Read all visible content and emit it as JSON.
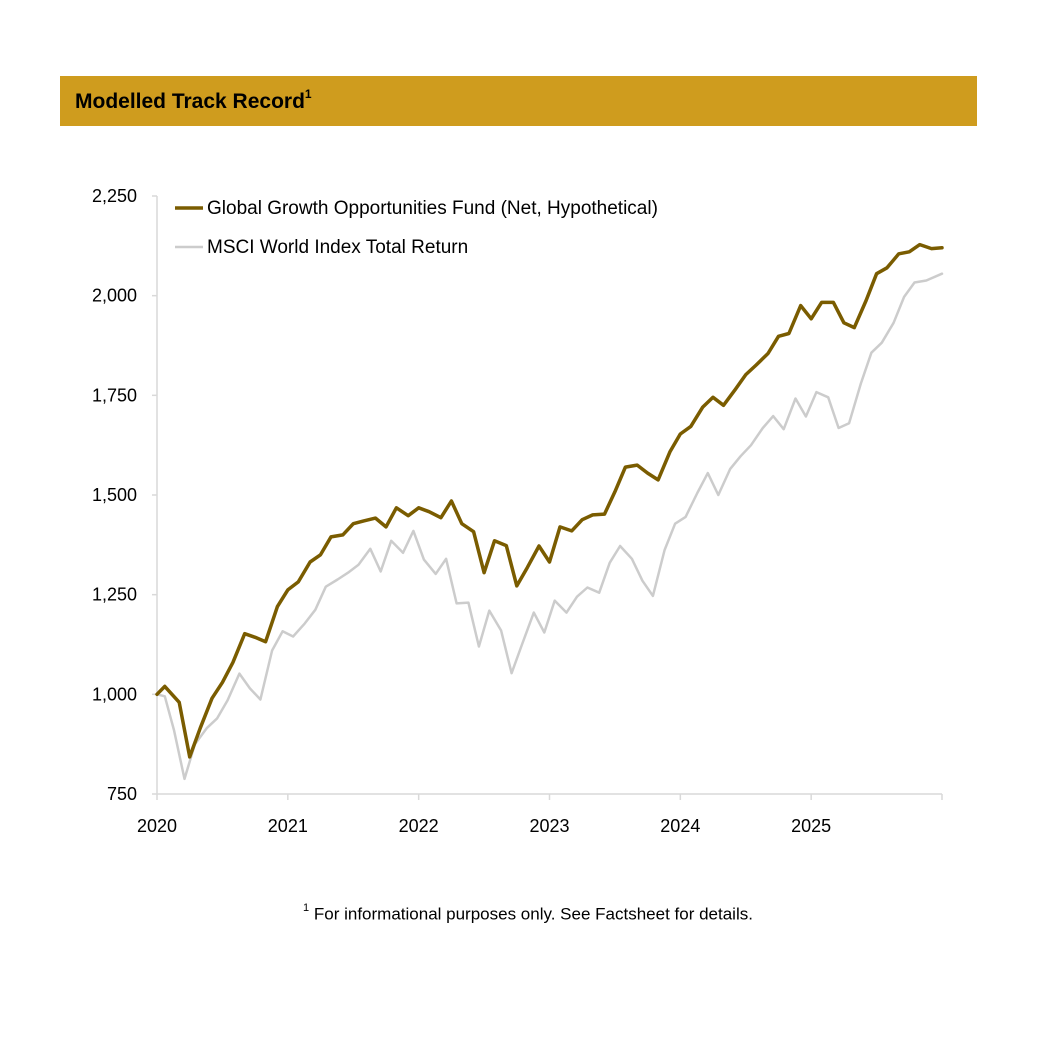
{
  "header": {
    "title": "Modelled Track Record",
    "title_sup": "1",
    "bar_color": "#cf9c1e"
  },
  "footnote": {
    "marker": "1",
    "text": " For informational purposes only. See Factsheet for details."
  },
  "chart_data": {
    "type": "line",
    "title": "",
    "xlabel": "",
    "ylabel": "",
    "ylim": [
      750,
      2250
    ],
    "xlim": [
      2020,
      2026
    ],
    "x_ticks": [
      2020,
      2021,
      2022,
      2023,
      2024,
      2025
    ],
    "x_tick_labels": [
      "2020",
      "2021",
      "2022",
      "2023",
      "2024",
      "2025"
    ],
    "y_ticks": [
      750,
      1000,
      1250,
      1500,
      1750,
      2000,
      2250
    ],
    "y_tick_labels": [
      "750",
      "1,000",
      "1,250",
      "1,500",
      "1,750",
      "2,000",
      "2,250"
    ],
    "grid": false,
    "legend_position": "top-left",
    "series": [
      {
        "name": "Global Growth Opportunities Fund (Net, Hypothetical)",
        "color": "#7a5c00",
        "points": [
          [
            2020.0,
            1000
          ],
          [
            2020.06,
            1020
          ],
          [
            2020.17,
            980
          ],
          [
            2020.25,
            843
          ],
          [
            2020.33,
            915
          ],
          [
            2020.42,
            990
          ],
          [
            2020.5,
            1030
          ],
          [
            2020.58,
            1080
          ],
          [
            2020.67,
            1152
          ],
          [
            2020.75,
            1143
          ],
          [
            2020.83,
            1132
          ],
          [
            2020.92,
            1220
          ],
          [
            2021.0,
            1262
          ],
          [
            2021.08,
            1282
          ],
          [
            2021.17,
            1332
          ],
          [
            2021.25,
            1350
          ],
          [
            2021.33,
            1395
          ],
          [
            2021.42,
            1400
          ],
          [
            2021.5,
            1428
          ],
          [
            2021.58,
            1435
          ],
          [
            2021.67,
            1442
          ],
          [
            2021.75,
            1420
          ],
          [
            2021.83,
            1468
          ],
          [
            2021.92,
            1448
          ],
          [
            2022.0,
            1468
          ],
          [
            2022.08,
            1458
          ],
          [
            2022.17,
            1443
          ],
          [
            2022.25,
            1485
          ],
          [
            2022.33,
            1428
          ],
          [
            2022.42,
            1408
          ],
          [
            2022.5,
            1305
          ],
          [
            2022.58,
            1385
          ],
          [
            2022.67,
            1373
          ],
          [
            2022.75,
            1272
          ],
          [
            2022.83,
            1318
          ],
          [
            2022.92,
            1372
          ],
          [
            2023.0,
            1332
          ],
          [
            2023.08,
            1420
          ],
          [
            2023.17,
            1410
          ],
          [
            2023.25,
            1438
          ],
          [
            2023.33,
            1450
          ],
          [
            2023.42,
            1452
          ],
          [
            2023.5,
            1508
          ],
          [
            2023.58,
            1570
          ],
          [
            2023.67,
            1575
          ],
          [
            2023.75,
            1555
          ],
          [
            2023.83,
            1538
          ],
          [
            2023.92,
            1608
          ],
          [
            2024.0,
            1653
          ],
          [
            2024.08,
            1672
          ],
          [
            2024.17,
            1720
          ],
          [
            2024.25,
            1745
          ],
          [
            2024.33,
            1725
          ],
          [
            2024.42,
            1765
          ],
          [
            2024.5,
            1802
          ],
          [
            2024.58,
            1826
          ],
          [
            2024.67,
            1855
          ],
          [
            2024.75,
            1898
          ],
          [
            2024.83,
            1905
          ],
          [
            2024.92,
            1975
          ],
          [
            2025.0,
            1942
          ],
          [
            2025.08,
            1983
          ],
          [
            2025.17,
            1983
          ],
          [
            2025.25,
            1932
          ],
          [
            2025.33,
            1920
          ],
          [
            2025.42,
            1988
          ],
          [
            2025.5,
            2055
          ],
          [
            2025.58,
            2070
          ],
          [
            2025.67,
            2105
          ],
          [
            2025.75,
            2110
          ],
          [
            2025.83,
            2128
          ],
          [
            2025.92,
            2118
          ],
          [
            2026.0,
            2120
          ]
        ]
      },
      {
        "name": "MSCI World Index Total Return",
        "color": "#cccccc",
        "points": [
          [
            2020.0,
            1000
          ],
          [
            2020.06,
            995
          ],
          [
            2020.13,
            910
          ],
          [
            2020.21,
            788
          ],
          [
            2020.29,
            875
          ],
          [
            2020.38,
            915
          ],
          [
            2020.46,
            940
          ],
          [
            2020.54,
            985
          ],
          [
            2020.63,
            1052
          ],
          [
            2020.71,
            1015
          ],
          [
            2020.79,
            987
          ],
          [
            2020.88,
            1110
          ],
          [
            2020.96,
            1158
          ],
          [
            2021.04,
            1145
          ],
          [
            2021.13,
            1178
          ],
          [
            2021.21,
            1212
          ],
          [
            2021.29,
            1270
          ],
          [
            2021.38,
            1288
          ],
          [
            2021.46,
            1305
          ],
          [
            2021.54,
            1325
          ],
          [
            2021.63,
            1365
          ],
          [
            2021.71,
            1308
          ],
          [
            2021.79,
            1385
          ],
          [
            2021.88,
            1355
          ],
          [
            2021.96,
            1410
          ],
          [
            2022.04,
            1338
          ],
          [
            2022.13,
            1302
          ],
          [
            2022.21,
            1340
          ],
          [
            2022.29,
            1228
          ],
          [
            2022.38,
            1230
          ],
          [
            2022.46,
            1120
          ],
          [
            2022.54,
            1210
          ],
          [
            2022.63,
            1160
          ],
          [
            2022.71,
            1053
          ],
          [
            2022.79,
            1125
          ],
          [
            2022.88,
            1205
          ],
          [
            2022.96,
            1155
          ],
          [
            2023.04,
            1235
          ],
          [
            2023.13,
            1205
          ],
          [
            2023.21,
            1245
          ],
          [
            2023.29,
            1268
          ],
          [
            2023.38,
            1255
          ],
          [
            2023.46,
            1330
          ],
          [
            2023.54,
            1372
          ],
          [
            2023.63,
            1340
          ],
          [
            2023.71,
            1285
          ],
          [
            2023.79,
            1247
          ],
          [
            2023.88,
            1362
          ],
          [
            2023.96,
            1428
          ],
          [
            2024.04,
            1445
          ],
          [
            2024.13,
            1505
          ],
          [
            2024.21,
            1555
          ],
          [
            2024.29,
            1500
          ],
          [
            2024.38,
            1565
          ],
          [
            2024.46,
            1597
          ],
          [
            2024.54,
            1625
          ],
          [
            2024.63,
            1668
          ],
          [
            2024.71,
            1698
          ],
          [
            2024.79,
            1665
          ],
          [
            2024.88,
            1742
          ],
          [
            2024.96,
            1697
          ],
          [
            2025.04,
            1758
          ],
          [
            2025.13,
            1745
          ],
          [
            2025.21,
            1668
          ],
          [
            2025.29,
            1680
          ],
          [
            2025.38,
            1780
          ],
          [
            2025.46,
            1857
          ],
          [
            2025.54,
            1882
          ],
          [
            2025.63,
            1932
          ],
          [
            2025.71,
            1997
          ],
          [
            2025.79,
            2033
          ],
          [
            2025.88,
            2038
          ],
          [
            2026.0,
            2055
          ]
        ]
      }
    ]
  }
}
